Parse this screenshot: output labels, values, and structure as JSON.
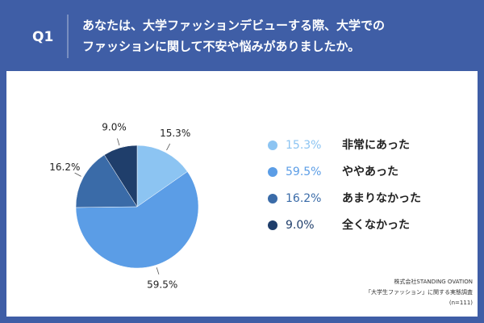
{
  "chart_data": {
    "type": "pie",
    "question": "Q1",
    "title_lines": [
      "あなたは、大学ファッションデビューする際、大学での",
      "ファッションに関して不安や悩みがありましたか。"
    ],
    "categories": [
      "非常にあった",
      "ややあった",
      "あまりなかった",
      "全くなかった"
    ],
    "values": [
      15.3,
      59.5,
      16.2,
      9.0
    ],
    "value_labels": [
      "15.3%",
      "59.5%",
      "16.2%",
      "9.0%"
    ],
    "colors": [
      "#8cc4f2",
      "#5b9de6",
      "#3a6ba8",
      "#1f3e6b"
    ],
    "source_lines": [
      "株式会社STANDING OVATION",
      "「大学生ファッション」に関する実態調査",
      "(n=111)"
    ]
  }
}
